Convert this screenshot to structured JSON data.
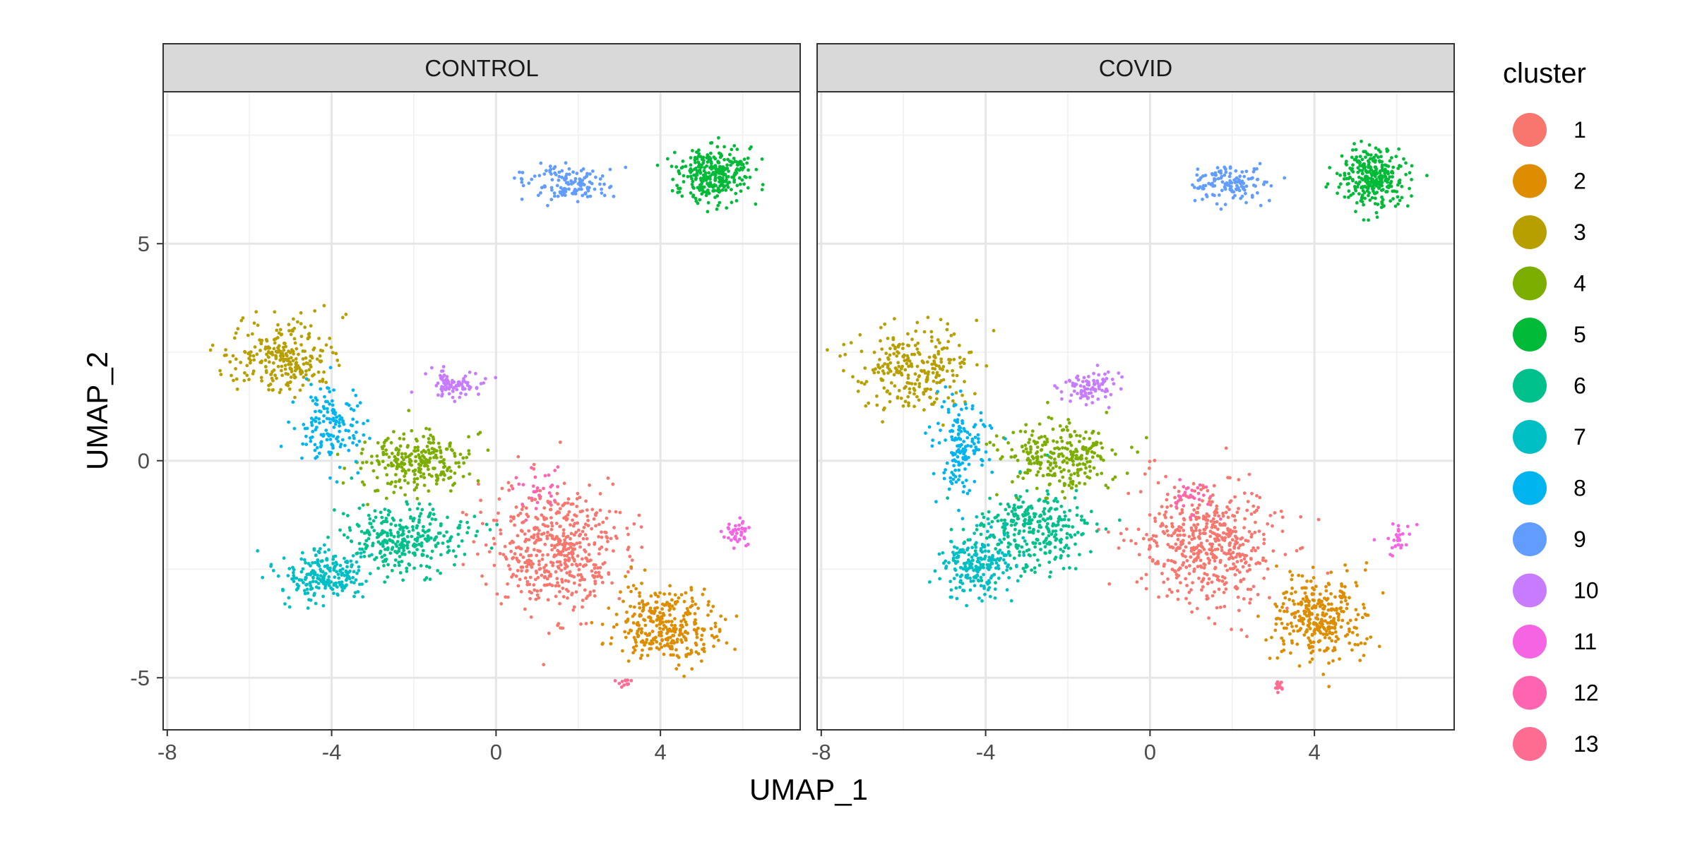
{
  "chart_data": {
    "type": "scatter",
    "title": "",
    "xlabel": "UMAP_1",
    "ylabel": "UMAP_2",
    "xlim": [
      -8.1,
      7.4
    ],
    "ylim": [
      -6.2,
      8.5
    ],
    "x_ticks": [
      -8,
      -4,
      0,
      4
    ],
    "y_ticks": [
      -5,
      0,
      5
    ],
    "x_tick_labels": [
      "-8",
      "-4",
      "0",
      "4"
    ],
    "y_tick_labels": [
      "-5",
      "0",
      "5"
    ],
    "grid": true,
    "legend": {
      "title": "cluster",
      "position": "right",
      "entries": [
        {
          "label": "1",
          "color": "#F8766D"
        },
        {
          "label": "2",
          "color": "#DE8C00"
        },
        {
          "label": "3",
          "color": "#B79F00"
        },
        {
          "label": "4",
          "color": "#7CAE00"
        },
        {
          "label": "5",
          "color": "#00BA38"
        },
        {
          "label": "6",
          "color": "#00C08B"
        },
        {
          "label": "7",
          "color": "#00BFC4"
        },
        {
          "label": "8",
          "color": "#00B4F0"
        },
        {
          "label": "9",
          "color": "#619CFF"
        },
        {
          "label": "10",
          "color": "#C77CFF"
        },
        {
          "label": "11",
          "color": "#F564E3"
        },
        {
          "label": "12",
          "color": "#FF64B0"
        },
        {
          "label": "13",
          "color": "#FF6C91"
        }
      ]
    },
    "facets": [
      "CONTROL",
      "COVID"
    ],
    "cluster_regions": [
      {
        "cluster": "1",
        "facet": "CONTROL",
        "center": [
          1.4,
          -2.0
        ],
        "spread": [
          1.5,
          1.3
        ],
        "points": 500
      },
      {
        "cluster": "1",
        "facet": "COVID",
        "center": [
          1.4,
          -1.9
        ],
        "spread": [
          1.5,
          1.3
        ],
        "points": 520
      },
      {
        "cluster": "2",
        "facet": "CONTROL",
        "center": [
          4.1,
          -3.8
        ],
        "spread": [
          1.1,
          0.8
        ],
        "points": 320
      },
      {
        "cluster": "2",
        "facet": "COVID",
        "center": [
          4.1,
          -3.6
        ],
        "spread": [
          1.0,
          0.9
        ],
        "points": 320
      },
      {
        "cluster": "3",
        "facet": "CONTROL",
        "center": [
          -5.2,
          2.4
        ],
        "spread": [
          1.2,
          0.8
        ],
        "points": 260
      },
      {
        "cluster": "3",
        "facet": "COVID",
        "center": [
          -5.8,
          2.1
        ],
        "spread": [
          1.3,
          0.9
        ],
        "points": 260
      },
      {
        "cluster": "4",
        "facet": "CONTROL",
        "center": [
          -2.0,
          0.0
        ],
        "spread": [
          1.2,
          0.6
        ],
        "points": 260
      },
      {
        "cluster": "4",
        "facet": "COVID",
        "center": [
          -2.2,
          0.1
        ],
        "spread": [
          1.2,
          0.7
        ],
        "points": 260
      },
      {
        "cluster": "5",
        "facet": "CONTROL",
        "center": [
          5.3,
          6.6
        ],
        "spread": [
          0.8,
          0.6
        ],
        "points": 300
      },
      {
        "cluster": "5",
        "facet": "COVID",
        "center": [
          5.4,
          6.5
        ],
        "spread": [
          0.7,
          0.6
        ],
        "points": 300
      },
      {
        "cluster": "6",
        "facet": "CONTROL",
        "center": [
          -2.2,
          -1.8
        ],
        "spread": [
          1.4,
          0.7
        ],
        "points": 300
      },
      {
        "cluster": "6",
        "facet": "COVID",
        "center": [
          -2.8,
          -1.6
        ],
        "spread": [
          1.3,
          0.8
        ],
        "points": 300
      },
      {
        "cluster": "7",
        "facet": "CONTROL",
        "center": [
          -4.2,
          -2.6
        ],
        "spread": [
          0.9,
          0.6
        ],
        "points": 220
      },
      {
        "cluster": "7",
        "facet": "COVID",
        "center": [
          -4.2,
          -2.4
        ],
        "spread": [
          0.9,
          0.7
        ],
        "points": 220
      },
      {
        "cluster": "8",
        "facet": "CONTROL",
        "center": [
          -4.0,
          0.8
        ],
        "spread": [
          0.7,
          0.9
        ],
        "points": 150
      },
      {
        "cluster": "8",
        "facet": "COVID",
        "center": [
          -4.6,
          0.3
        ],
        "spread": [
          0.6,
          1.0
        ],
        "points": 150
      },
      {
        "cluster": "9",
        "facet": "CONTROL",
        "center": [
          1.8,
          6.4
        ],
        "spread": [
          0.9,
          0.4
        ],
        "points": 130
      },
      {
        "cluster": "9",
        "facet": "COVID",
        "center": [
          2.0,
          6.4
        ],
        "spread": [
          0.9,
          0.4
        ],
        "points": 130
      },
      {
        "cluster": "10",
        "facet": "CONTROL",
        "center": [
          -1.0,
          1.8
        ],
        "spread": [
          0.6,
          0.3
        ],
        "points": 90
      },
      {
        "cluster": "10",
        "facet": "COVID",
        "center": [
          -1.4,
          1.7
        ],
        "spread": [
          0.6,
          0.3
        ],
        "points": 90
      },
      {
        "cluster": "11",
        "facet": "CONTROL",
        "center": [
          5.9,
          -1.7
        ],
        "spread": [
          0.3,
          0.3
        ],
        "points": 40
      },
      {
        "cluster": "11",
        "facet": "COVID",
        "center": [
          6.0,
          -1.8
        ],
        "spread": [
          0.3,
          0.3
        ],
        "points": 28
      },
      {
        "cluster": "12",
        "facet": "CONTROL",
        "center": [
          1.0,
          -0.8
        ],
        "spread": [
          0.6,
          0.5
        ],
        "points": 30
      },
      {
        "cluster": "12",
        "facet": "COVID",
        "center": [
          1.0,
          -0.8
        ],
        "spread": [
          0.6,
          0.5
        ],
        "points": 30
      },
      {
        "cluster": "13",
        "facet": "CONTROL",
        "center": [
          3.1,
          -5.1
        ],
        "spread": [
          0.15,
          0.12
        ],
        "points": 12
      },
      {
        "cluster": "13",
        "facet": "COVID",
        "center": [
          3.1,
          -5.2
        ],
        "spread": [
          0.15,
          0.12
        ],
        "points": 12
      }
    ]
  }
}
